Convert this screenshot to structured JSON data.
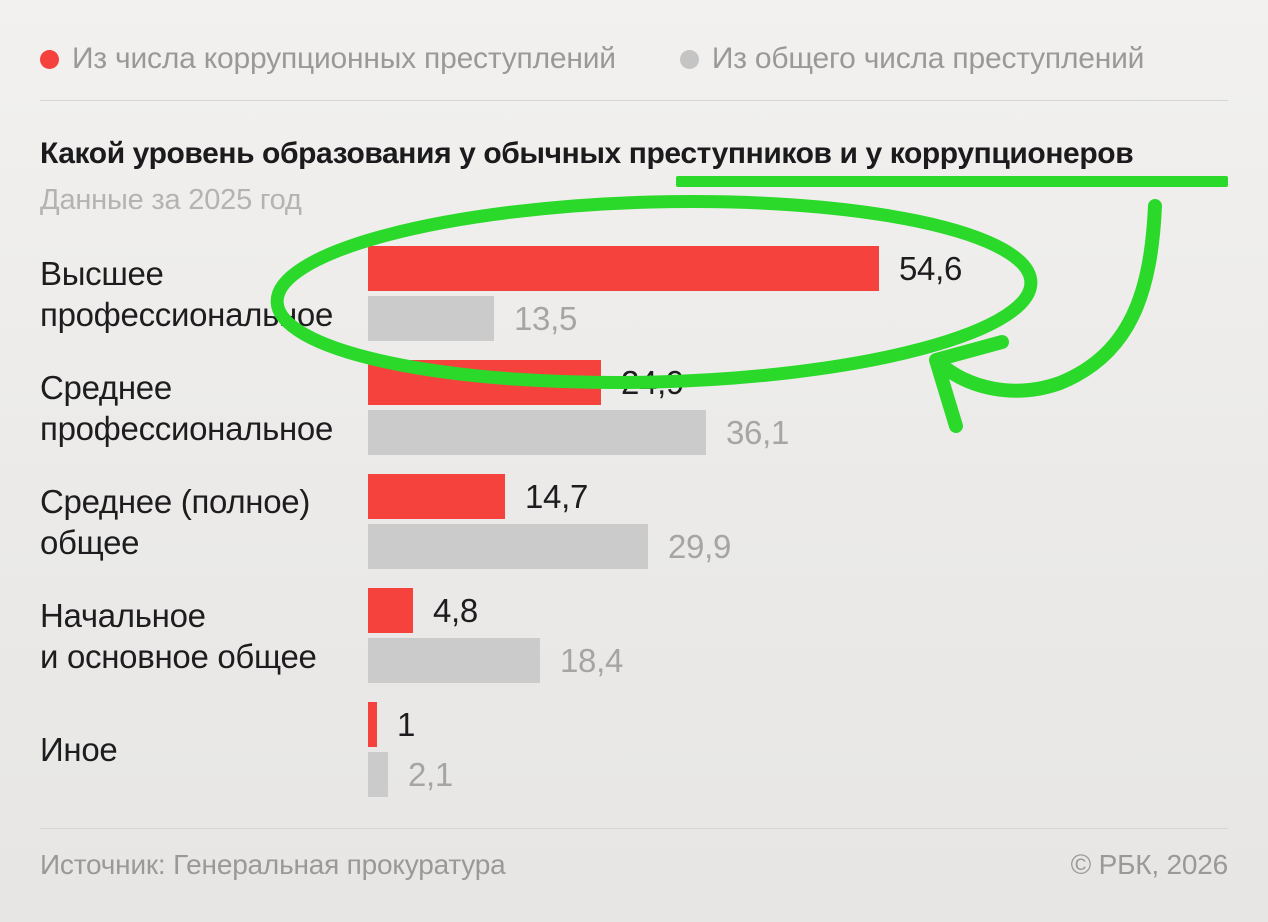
{
  "legend": {
    "items": [
      {
        "label": "Из числа коррупционных преступлений",
        "color": "#f5423d"
      },
      {
        "label": "Из общего числа преступлений",
        "color": "#c4c4c4"
      }
    ]
  },
  "header": {
    "title": "Какой уровень образования у обычных преступников и у коррупционеров",
    "subtitle": "Данные за 2025 год"
  },
  "chart_data": {
    "type": "bar",
    "orientation": "horizontal",
    "title": "Какой уровень образования у обычных преступников и у коррупционеров",
    "subtitle": "Данные за 2025 год",
    "categories": [
      "Высшее профессиональное",
      "Среднее профессиональное",
      "Среднее (полное) общее",
      "Начальное и основное общее",
      "Иное"
    ],
    "categories_lines": [
      [
        "Высшее",
        "профессиональное"
      ],
      [
        "Среднее",
        "профессиональное"
      ],
      [
        "Среднее (полное)",
        "общее"
      ],
      [
        "Начальное",
        "и основное общее"
      ],
      [
        "Иное"
      ]
    ],
    "series": [
      {
        "name": "Из числа коррупционных преступлений",
        "color": "#f5423d",
        "values": [
          54.6,
          24.9,
          14.7,
          4.8,
          1
        ],
        "value_labels": [
          "54,6",
          "24,9",
          "14,7",
          "4,8",
          "1"
        ],
        "label_color": "#1d1d1f"
      },
      {
        "name": "Из общего числа преступлений",
        "color": "#cbcbcb",
        "values": [
          13.5,
          36.1,
          29.9,
          18.4,
          2.1
        ],
        "value_labels": [
          "13,5",
          "36,1",
          "29,9",
          "18,4",
          "2,1"
        ],
        "label_color": "#a6a5a3"
      }
    ],
    "xlim": [
      0,
      60
    ],
    "grid": false,
    "legend_position": "top",
    "unit": "percent"
  },
  "annotations": {
    "color": "#2bd92b",
    "items": [
      "green-underline-under-title-right-part",
      "green-ellipse-around-first-bar-group",
      "green-curved-arrow-pointing-to-ellipse"
    ]
  },
  "footer": {
    "source": "Источник: Генеральная прокуратура",
    "copyright": "© РБК, 2026"
  }
}
